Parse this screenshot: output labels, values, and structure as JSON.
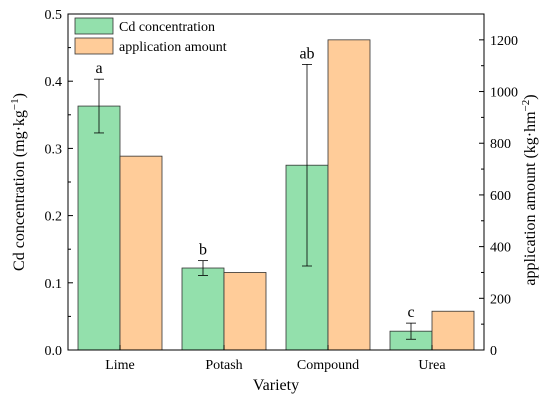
{
  "chart_data": {
    "type": "bar",
    "xlabel": "Variety",
    "ylabel_left_main": "Cd concentration (mg·kg",
    "ylabel_left_sup": "−1",
    "ylabel_left_tail": ")",
    "ylabel_right_main": "application amount (kg·hm",
    "ylabel_right_sup": "−2",
    "ylabel_right_tail": ")",
    "categories": [
      "Lime",
      "Potash",
      "Compound",
      "Urea"
    ],
    "left_axis": {
      "ylim": [
        0,
        0.5
      ],
      "ticks": [
        "0.0",
        "0.1",
        "0.2",
        "0.3",
        "0.4",
        "0.5"
      ]
    },
    "right_axis": {
      "ylim": [
        0,
        1300
      ],
      "ticks": [
        "0",
        "200",
        "400",
        "600",
        "800",
        "1000",
        "1200"
      ]
    },
    "series": [
      {
        "name": "Cd concentration",
        "axis": "left",
        "color": "#93e0ac",
        "values": [
          0.363,
          0.122,
          0.275,
          0.028
        ],
        "error": [
          0.04,
          0.011,
          0.15,
          0.012
        ],
        "labels": [
          "a",
          "b",
          "ab",
          "c"
        ]
      },
      {
        "name": "application amount",
        "axis": "right",
        "color": "#ffcc99",
        "values": [
          750,
          300,
          1200,
          150
        ]
      }
    ],
    "legend_position": "top-left",
    "grid": false
  }
}
